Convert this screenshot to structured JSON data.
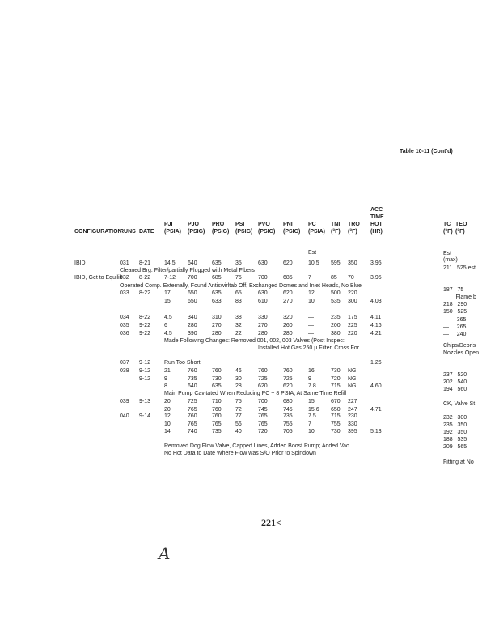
{
  "table_title": "Table 10-11 (Cont'd)",
  "headers": [
    {
      "lines": [
        "CONFIGURATION"
      ]
    },
    {
      "lines": [
        "RUNS"
      ]
    },
    {
      "lines": [
        "DATE"
      ]
    },
    {
      "lines": [
        "PJI",
        "(PSIA)"
      ]
    },
    {
      "lines": [
        "PJO",
        "(PSIG)"
      ]
    },
    {
      "lines": [
        "PRO",
        "(PSIG)"
      ]
    },
    {
      "lines": [
        "PSI",
        "(PSIG)"
      ]
    },
    {
      "lines": [
        "PVO",
        "(PSIG)"
      ]
    },
    {
      "lines": [
        "PNI",
        "(PSIG)"
      ]
    },
    {
      "lines": [
        "PC",
        "(PSIA)"
      ]
    },
    {
      "lines": [
        "TNI",
        "(°F)"
      ]
    },
    {
      "lines": [
        "TRO",
        "(°F)"
      ]
    },
    {
      "lines": [
        "ACC",
        "TIME",
        "HOT",
        "(HR)"
      ]
    },
    {
      "lines": [
        "TC",
        "(°F)"
      ]
    },
    {
      "lines": [
        "TEO",
        "(°F)"
      ]
    }
  ],
  "rows": [
    {
      "cells": [
        "",
        "",
        "",
        "",
        "",
        "",
        "",
        "",
        "",
        "Est",
        "",
        "",
        ""
      ]
    },
    {
      "cells": [
        "IBID",
        "031",
        "8-21",
        "14.5",
        "640",
        "635",
        "35",
        "630",
        "620",
        "10.5",
        "595",
        "350",
        "3.95"
      ]
    },
    {
      "note": "Cleaned Brg. Filter/partially Plugged with Metal Fibers",
      "col": 1
    },
    {
      "cells": [
        "IBID, Get to Equilib",
        "032",
        "8-22",
        "7-12",
        "700",
        "685",
        "75",
        "700",
        "685",
        "7",
        "85",
        "70",
        "3.95"
      ]
    },
    {
      "note": "Operated Comp. Externally, Found Antiswirltab Off, Exchanged Domes and Inlet Heads, No Blue",
      "col": 1
    },
    {
      "cells": [
        "",
        "033",
        "8-22",
        "17",
        "650",
        "635",
        "65",
        "630",
        "620",
        "12",
        "500",
        "220",
        ""
      ]
    },
    {
      "cells": [
        "",
        "",
        "",
        "15",
        "650",
        "633",
        "83",
        "610",
        "270",
        "10",
        "535",
        "300",
        "4.03"
      ]
    },
    {
      "cells": [
        "",
        "034",
        "8-22",
        "4.5",
        "340",
        "310",
        "38",
        "330",
        "320",
        "—",
        "235",
        "175",
        "4.11"
      ]
    },
    {
      "cells": [
        "",
        "035",
        "9-22",
        "6",
        "280",
        "270",
        "32",
        "270",
        "260",
        "—",
        "200",
        "225",
        "4.16"
      ]
    },
    {
      "cells": [
        "",
        "036",
        "9-22",
        "4.5",
        "390",
        "280",
        "22",
        "280",
        "280",
        "—",
        "380",
        "220",
        "4.21"
      ]
    },
    {
      "note": "Made Following Changes:  Removed 001, 002, 003 Valves (Post Inspec:",
      "col": 3
    },
    {
      "note": "Installed Hot Gas 250 µ Filter, Cross For",
      "col": 7
    },
    {
      "cells": [
        "",
        "037",
        "9-12",
        "Run Too Short",
        "",
        "",
        "",
        "",
        "",
        "",
        "",
        "",
        "1.26"
      ]
    },
    {
      "cells": [
        "",
        "038",
        "9-12",
        "21",
        "760",
        "760",
        "46",
        "760",
        "760",
        "16",
        "730",
        "NG",
        ""
      ]
    },
    {
      "cells": [
        "",
        "",
        "9-12",
        "9",
        "735",
        "730",
        "30",
        "725",
        "725",
        "9",
        "720",
        "NG",
        ""
      ]
    },
    {
      "cells": [
        "",
        "",
        "",
        "8",
        "640",
        "635",
        "28",
        "620",
        "620",
        "7.8",
        "715",
        "NG",
        "4.60"
      ]
    },
    {
      "note": "Main Pump Cavitated When Reducing PC ~ 8 PSIA; At Same Time Refill",
      "col": 3
    },
    {
      "cells": [
        "",
        "039",
        "9-13",
        "20",
        "725",
        "710",
        "75",
        "700",
        "680",
        "15",
        "670",
        "227",
        ""
      ]
    },
    {
      "cells": [
        "",
        "",
        "",
        "20",
        "765",
        "760",
        "72",
        "745",
        "745",
        "15.6",
        "650",
        "247",
        "4.71"
      ]
    },
    {
      "cells": [
        "",
        "040",
        "9-14",
        "12",
        "760",
        "760",
        "77",
        "765",
        "735",
        "7.5",
        "715",
        "230",
        ""
      ]
    },
    {
      "cells": [
        "",
        "",
        "",
        "10",
        "765",
        "765",
        "56",
        "765",
        "755",
        "7",
        "755",
        "330",
        ""
      ]
    },
    {
      "cells": [
        "",
        "",
        "",
        "14",
        "740",
        "735",
        "40",
        "720",
        "705",
        "10",
        "730",
        "395",
        "5.13"
      ]
    },
    {
      "note": "Removed Dog Flow Valve, Capped Lines, Added Boost Pump; Added Vac.",
      "col": 3
    },
    {
      "note": "No Hot Data to Date Where Flow was S/O Prior to Spindown",
      "col": 3
    }
  ],
  "right_column": [
    "Est",
    "(max)",
    "211   525 est.",
    "187   75",
    "        Flame b",
    "218   290",
    "150   525",
    "—     365",
    "—     265",
    "—     240",
    "Chips/Debris",
    "Nozzles Open",
    "237   520",
    "202   540",
    "194   560",
    "CK, Valve St",
    "232   300",
    "235   350",
    "192   350",
    "188   535",
    "209   565",
    "Fitting at No"
  ],
  "page_number": "221<",
  "handwritten_mark": "A"
}
